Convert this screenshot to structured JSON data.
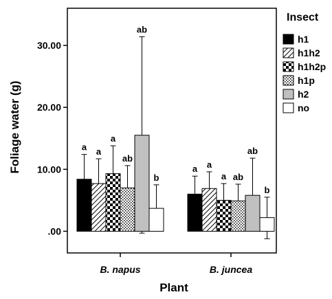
{
  "chart_data": {
    "type": "bar",
    "title": "",
    "xlabel": "Plant",
    "ylabel": "Foliage water (g)",
    "ylim": [
      -3.5,
      36
    ],
    "yticks": [
      0,
      10,
      20,
      30
    ],
    "ytick_labels": [
      ".00",
      "10.00",
      "20.00",
      "30.00"
    ],
    "grid": false,
    "legend_position": "right",
    "legend_title": "Insect",
    "categories": [
      "B. napus",
      "B. juncea"
    ],
    "series": [
      {
        "name": "h1",
        "fill": "solid-black",
        "values": [
          8.4,
          6.0
        ],
        "err_upper": [
          12.4,
          8.9
        ],
        "err_lower": [
          null,
          null
        ],
        "letters": [
          "a",
          "a"
        ]
      },
      {
        "name": "h1h2",
        "fill": "diagonal-hatch",
        "values": [
          7.7,
          6.9
        ],
        "err_upper": [
          11.7,
          9.6
        ],
        "err_lower": [
          null,
          null
        ],
        "letters": [
          "a",
          "a"
        ]
      },
      {
        "name": "h1h2p",
        "fill": "checkerboard",
        "values": [
          9.3,
          5.0
        ],
        "err_upper": [
          13.8,
          7.7
        ],
        "err_lower": [
          null,
          null
        ],
        "letters": [
          "a",
          "a"
        ]
      },
      {
        "name": "h1p",
        "fill": "dotted",
        "values": [
          7.0,
          4.9
        ],
        "err_upper": [
          10.6,
          7.6
        ],
        "err_lower": [
          null,
          null
        ],
        "letters": [
          "ab",
          "ab"
        ]
      },
      {
        "name": "h2",
        "fill": "solid-gray",
        "values": [
          15.5,
          5.8
        ],
        "err_upper": [
          31.4,
          11.8
        ],
        "err_lower": [
          -0.3,
          null
        ],
        "letters": [
          "ab",
          "ab"
        ]
      },
      {
        "name": "no",
        "fill": "white",
        "values": [
          3.7,
          2.2
        ],
        "err_upper": [
          7.5,
          5.5
        ],
        "err_lower": [
          null,
          -1.2
        ],
        "letters": [
          "b",
          "b"
        ]
      }
    ]
  }
}
